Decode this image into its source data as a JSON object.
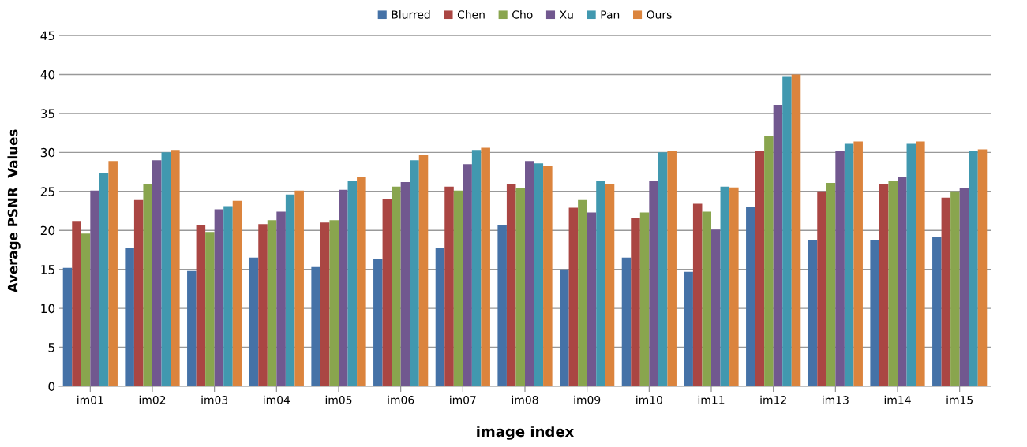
{
  "chart_data": {
    "type": "bar",
    "xlabel": "image index",
    "ylabel": "Average PSNR  Values",
    "categories": [
      "im01",
      "im02",
      "im03",
      "im04",
      "im05",
      "im06",
      "im07",
      "im08",
      "im09",
      "im10",
      "im11",
      "im12",
      "im13",
      "im14",
      "im15"
    ],
    "series": [
      {
        "name": "Blurred",
        "color": "#4572a7",
        "values": [
          15.2,
          17.8,
          14.8,
          16.5,
          15.3,
          16.3,
          17.7,
          20.7,
          15.0,
          16.5,
          14.7,
          23.0,
          18.8,
          18.7,
          19.1
        ]
      },
      {
        "name": "Chen",
        "color": "#aa4643",
        "values": [
          21.2,
          23.9,
          20.7,
          20.8,
          21.0,
          24.0,
          25.6,
          25.9,
          22.9,
          21.6,
          23.4,
          30.2,
          25.0,
          25.9,
          24.2
        ]
      },
      {
        "name": "Cho",
        "color": "#89a54e",
        "values": [
          19.6,
          25.9,
          19.8,
          21.3,
          21.3,
          25.6,
          25.1,
          25.4,
          23.9,
          22.3,
          22.4,
          32.1,
          26.1,
          26.3,
          25.0
        ]
      },
      {
        "name": "Xu",
        "color": "#71588f",
        "values": [
          25.1,
          29.0,
          22.7,
          22.4,
          25.2,
          26.2,
          28.5,
          28.9,
          22.3,
          26.3,
          20.1,
          36.1,
          30.2,
          26.8,
          25.4
        ]
      },
      {
        "name": "Pan",
        "color": "#4198af",
        "values": [
          27.4,
          30.0,
          23.1,
          24.6,
          26.4,
          29.0,
          30.3,
          28.6,
          26.3,
          30.0,
          25.6,
          39.7,
          31.1,
          31.1,
          30.2
        ]
      },
      {
        "name": "Ours",
        "color": "#db843d",
        "values": [
          28.9,
          30.3,
          23.8,
          25.1,
          26.8,
          29.7,
          30.6,
          28.3,
          26.0,
          30.2,
          25.5,
          40.0,
          31.4,
          31.4,
          30.4
        ]
      }
    ],
    "ylim": [
      0,
      45
    ],
    "yticks": [
      0,
      5,
      10,
      15,
      20,
      25,
      30,
      35,
      40,
      45
    ],
    "grid": "y",
    "legend": "top"
  }
}
